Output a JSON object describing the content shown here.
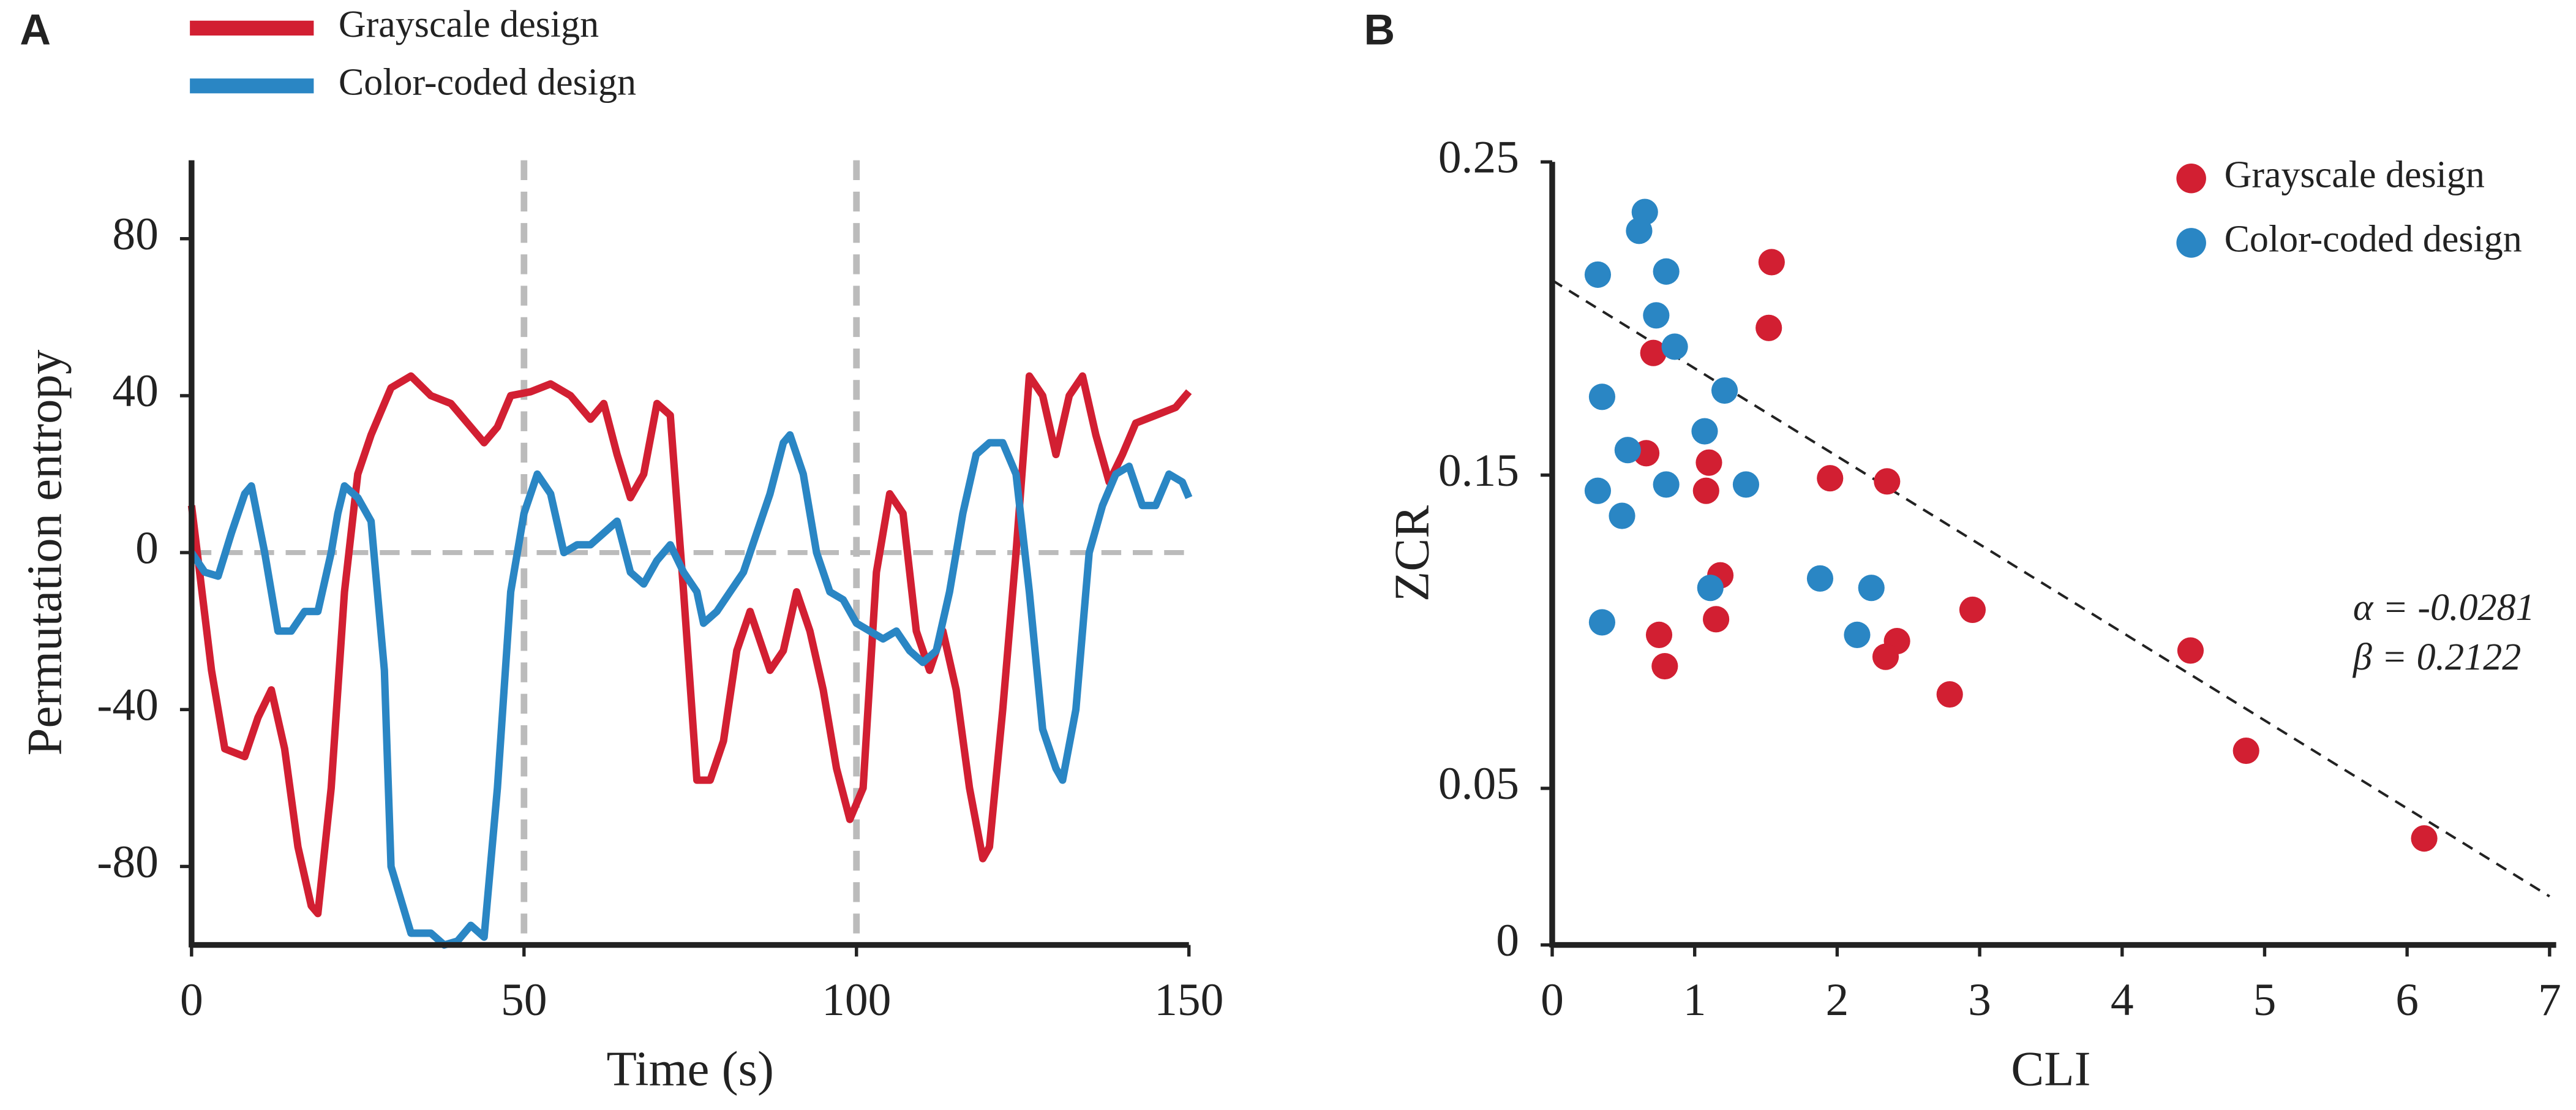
{
  "chart_data": [
    {
      "type": "line",
      "panel": "A",
      "xlabel": "Time (s)",
      "ylabel": "Permutation entropy",
      "xlim": [
        0,
        150
      ],
      "ylim": [
        -100,
        100
      ],
      "xticks": [
        0,
        50,
        100,
        150
      ],
      "yticks": [
        -80,
        -40,
        0,
        40,
        80
      ],
      "ref_lines": {
        "x": [
          50,
          100
        ],
        "y": [
          0
        ]
      },
      "legend": "top",
      "series": [
        {
          "name": "Grayscale design",
          "color": "#d21f32",
          "x": [
            0,
            3,
            5,
            8,
            10,
            12,
            14,
            16,
            18,
            19,
            21,
            23,
            25,
            27,
            30,
            33,
            36,
            39,
            42,
            44,
            46,
            48,
            51,
            54,
            57,
            60,
            62,
            64,
            66,
            68,
            70,
            72,
            74,
            76,
            78,
            80,
            82,
            84,
            87,
            89,
            91,
            93,
            95,
            97,
            99,
            101,
            103,
            105,
            107,
            109,
            111,
            113,
            115,
            117,
            119,
            120,
            122,
            124,
            126,
            128,
            130,
            132,
            134,
            136,
            138,
            140,
            142,
            145,
            148,
            150
          ],
          "values": [
            12,
            -30,
            -50,
            -52,
            -42,
            -35,
            -50,
            -75,
            -90,
            -92,
            -60,
            -10,
            20,
            30,
            42,
            45,
            40,
            38,
            32,
            28,
            32,
            40,
            41,
            43,
            40,
            34,
            38,
            25,
            14,
            20,
            38,
            35,
            -10,
            -58,
            -58,
            -48,
            -25,
            -15,
            -30,
            -25,
            -10,
            -20,
            -35,
            -55,
            -68,
            -60,
            -5,
            15,
            10,
            -20,
            -30,
            -20,
            -35,
            -60,
            -78,
            -75,
            -40,
            0,
            45,
            40,
            25,
            40,
            45,
            30,
            18,
            25,
            33,
            35,
            37,
            41
          ]
        },
        {
          "name": "Color-coded design",
          "color": "#2a86c4",
          "x": [
            0,
            2,
            4,
            6,
            8,
            9,
            11,
            13,
            15,
            17,
            19,
            21,
            22,
            23,
            25,
            27,
            29,
            30,
            33,
            36,
            38,
            40,
            42,
            44,
            46,
            48,
            50,
            52,
            54,
            56,
            58,
            60,
            62,
            64,
            66,
            68,
            70,
            72,
            74,
            76,
            77,
            79,
            81,
            83,
            85,
            87,
            89,
            90,
            92,
            94,
            96,
            98,
            100,
            102,
            104,
            106,
            108,
            110,
            112,
            114,
            116,
            118,
            120,
            122,
            124,
            126,
            128,
            130,
            131,
            133,
            135,
            137,
            139,
            141,
            143,
            145,
            147,
            149,
            150
          ],
          "values": [
            0,
            -5,
            -6,
            5,
            15,
            17,
            0,
            -20,
            -20,
            -15,
            -15,
            0,
            10,
            17,
            14,
            8,
            -30,
            -80,
            -97,
            -97,
            -100,
            -99,
            -95,
            -98,
            -60,
            -10,
            10,
            20,
            15,
            0,
            2,
            2,
            5,
            8,
            -5,
            -8,
            -2,
            2,
            -5,
            -10,
            -18,
            -15,
            -10,
            -5,
            5,
            15,
            28,
            30,
            20,
            0,
            -10,
            -12,
            -18,
            -20,
            -22,
            -20,
            -25,
            -28,
            -25,
            -10,
            10,
            25,
            28,
            28,
            20,
            -10,
            -45,
            -55,
            -58,
            -40,
            0,
            12,
            20,
            22,
            12,
            12,
            20,
            18,
            14
          ]
        }
      ]
    },
    {
      "type": "scatter",
      "panel": "B",
      "xlabel": "CLI",
      "ylabel": "ZCR",
      "xlim": [
        0,
        7
      ],
      "ylim": [
        0,
        0.25
      ],
      "xticks": [
        0,
        1,
        2,
        3,
        4,
        5,
        6,
        7
      ],
      "yticks": [
        0,
        0.05,
        0.15,
        0.25
      ],
      "legend": "upper right",
      "fit": {
        "slope": {
          "value": -0.0281,
          "label": "α = -0.0281"
        },
        "intercept": {
          "value": 0.2122,
          "label": "β =  0.2122"
        }
      },
      "series": [
        {
          "name": "Grayscale design",
          "color": "#d21f32",
          "x": [
            1.54,
            1.52,
            0.71,
            0.66,
            1.1,
            1.08,
            1.95,
            2.35,
            1.18,
            1.15,
            0.75,
            0.79,
            2.95,
            2.42,
            2.34,
            2.79,
            4.48,
            4.87,
            6.12
          ],
          "values": [
            0.218,
            0.197,
            0.189,
            0.157,
            0.154,
            0.145,
            0.149,
            0.148,
            0.118,
            0.104,
            0.099,
            0.089,
            0.107,
            0.097,
            0.092,
            0.08,
            0.094,
            0.062,
            0.034
          ]
        },
        {
          "name": "Color-coded design",
          "color": "#2a86c4",
          "x": [
            0.65,
            0.61,
            0.32,
            0.8,
            0.73,
            0.86,
            0.35,
            1.21,
            1.07,
            0.53,
            0.32,
            0.8,
            1.36,
            0.49,
            1.88,
            2.24,
            1.11,
            2.14,
            0.35
          ],
          "values": [
            0.234,
            0.228,
            0.214,
            0.215,
            0.201,
            0.191,
            0.175,
            0.177,
            0.164,
            0.158,
            0.145,
            0.147,
            0.147,
            0.137,
            0.117,
            0.114,
            0.114,
            0.099,
            0.103
          ]
        }
      ]
    }
  ]
}
